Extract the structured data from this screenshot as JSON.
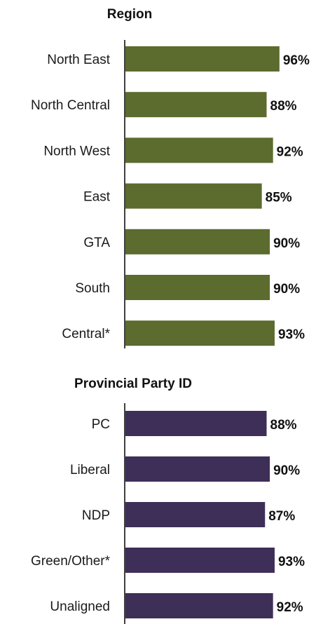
{
  "chart_data": [
    {
      "type": "bar",
      "orientation": "horizontal",
      "title": "Region",
      "categories": [
        "North East",
        "North Central",
        "North West",
        "East",
        "GTA",
        "South",
        "Central*"
      ],
      "values": [
        96,
        88,
        92,
        85,
        90,
        90,
        93
      ],
      "value_labels": [
        "96%",
        "88%",
        "92%",
        "85%",
        "90%",
        "90%",
        "93%"
      ],
      "color": "#5c6b2e",
      "xlim": [
        0,
        100
      ],
      "grid": false,
      "legend": "none"
    },
    {
      "type": "bar",
      "orientation": "horizontal",
      "title": "Provincial Party ID",
      "categories": [
        "PC",
        "Liberal",
        "NDP",
        "Green/Other*",
        "Unaligned"
      ],
      "values": [
        88,
        90,
        87,
        93,
        92
      ],
      "value_labels": [
        "88%",
        "90%",
        "87%",
        "93%",
        "92%"
      ],
      "color": "#3e2f58",
      "xlim": [
        0,
        100
      ],
      "grid": false,
      "legend": "none"
    }
  ]
}
